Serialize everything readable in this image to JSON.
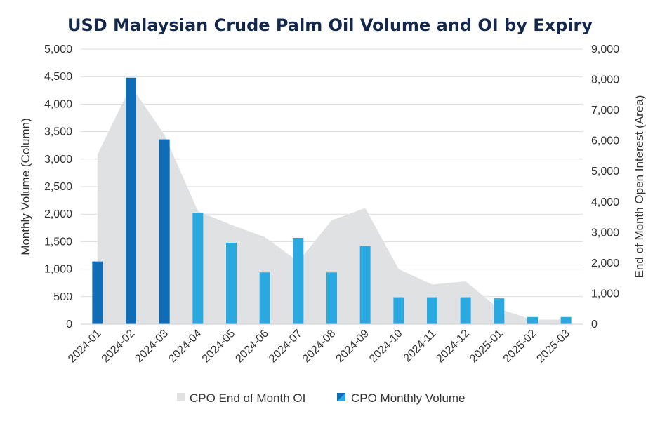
{
  "chart_data": {
    "type": "bar",
    "title": "USD Malaysian Crude Palm Oil Volume and OI by Expiry",
    "categories": [
      "2024-01",
      "2024-02",
      "2024-03",
      "2024-04",
      "2024-05",
      "2024-06",
      "2024-07",
      "2024-08",
      "2024-09",
      "2024-10",
      "2024-11",
      "2024-12",
      "2025-01",
      "2025-02",
      "2025-03"
    ],
    "ylabel": "Monthly Volume (Column)",
    "y2label": "End of Month Open Interest (Area)",
    "ylim": [
      0,
      5000
    ],
    "y2lim": [
      0,
      9000
    ],
    "y_ticks": [
      "0",
      "500",
      "1,000",
      "1,500",
      "2,000",
      "2,500",
      "3,000",
      "3,500",
      "4,000",
      "4,500",
      "5,000"
    ],
    "y2_ticks": [
      "0",
      "1,000",
      "2,000",
      "3,000",
      "4,000",
      "5,000",
      "6,000",
      "7,000",
      "8,000",
      "9,000"
    ],
    "series": [
      {
        "name": "CPO End of Month OI",
        "type": "area",
        "axis": "right",
        "color": "#dfe1e3",
        "values": [
          5550,
          7800,
          6200,
          3700,
          3250,
          2850,
          2050,
          3400,
          3800,
          1800,
          1300,
          1400,
          500,
          150,
          150
        ]
      },
      {
        "name": "CPO Monthly Volume",
        "type": "bar",
        "axis": "left",
        "color": "#2aa9e0",
        "highlight_color": "#0f6cb5",
        "highlight_categories": [
          "2024-01",
          "2024-02",
          "2024-03"
        ],
        "values": [
          1140,
          4480,
          3360,
          2020,
          1480,
          940,
          1570,
          940,
          1420,
          490,
          490,
          490,
          470,
          130,
          130
        ]
      }
    ],
    "legend": [
      "CPO End of Month OI",
      "CPO Monthly Volume"
    ],
    "legend_position": "bottom"
  }
}
